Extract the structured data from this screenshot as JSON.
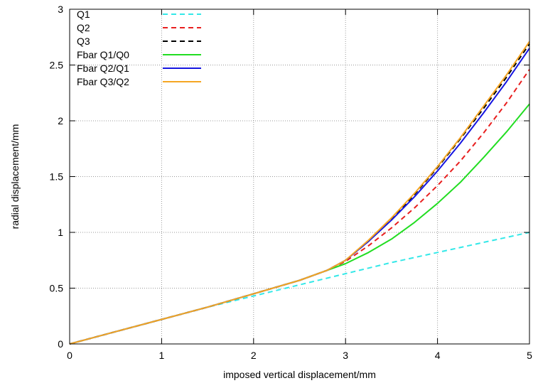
{
  "chart_data": {
    "type": "line",
    "xlabel": "imposed vertical displacement/mm",
    "ylabel": "radial displacement/mm",
    "xlim": [
      0,
      5
    ],
    "ylim": [
      0,
      3
    ],
    "xticks": [
      "0",
      "1",
      "2",
      "3",
      "4",
      "5"
    ],
    "yticks": [
      "0",
      "0.5",
      "1",
      "1.5",
      "2",
      "2.5",
      "3"
    ],
    "grid": true,
    "legend_position": "top-left",
    "series": [
      {
        "name": "Q1",
        "color": "#33e8e8",
        "dash": "dashed",
        "x": [
          0,
          0.5,
          1,
          1.5,
          2,
          2.5,
          3,
          3.5,
          4,
          4.5,
          5
        ],
        "y": [
          0,
          0.11,
          0.22,
          0.33,
          0.43,
          0.53,
          0.63,
          0.73,
          0.82,
          0.91,
          1.0
        ]
      },
      {
        "name": "Q2",
        "color": "#e81f1f",
        "dash": "dashed",
        "x": [
          0,
          0.5,
          1,
          1.5,
          2,
          2.5,
          2.8,
          3,
          3.25,
          3.5,
          3.75,
          4,
          4.25,
          4.5,
          4.75,
          5
        ],
        "y": [
          0,
          0.11,
          0.22,
          0.33,
          0.45,
          0.57,
          0.66,
          0.74,
          0.88,
          1.04,
          1.22,
          1.42,
          1.64,
          1.89,
          2.16,
          2.46
        ]
      },
      {
        "name": "Q3",
        "color": "#000000",
        "dash": "dashed",
        "x": [
          0,
          0.5,
          1,
          1.5,
          2,
          2.5,
          2.8,
          3,
          3.25,
          3.5,
          3.75,
          4,
          4.25,
          4.5,
          4.75,
          5
        ],
        "y": [
          0,
          0.11,
          0.22,
          0.33,
          0.45,
          0.57,
          0.66,
          0.75,
          0.92,
          1.12,
          1.34,
          1.58,
          1.84,
          2.11,
          2.39,
          2.69
        ]
      },
      {
        "name": "Fbar Q1/Q0",
        "color": "#22dd22",
        "dash": "solid",
        "x": [
          0,
          0.5,
          1,
          1.5,
          2,
          2.5,
          2.8,
          3,
          3.25,
          3.5,
          3.75,
          4,
          4.25,
          4.5,
          4.75,
          5
        ],
        "y": [
          0,
          0.11,
          0.22,
          0.33,
          0.45,
          0.57,
          0.66,
          0.72,
          0.82,
          0.94,
          1.09,
          1.26,
          1.45,
          1.67,
          1.9,
          2.15
        ]
      },
      {
        "name": "Fbar Q2/Q1",
        "color": "#1515e0",
        "dash": "solid",
        "x": [
          0,
          0.5,
          1,
          1.5,
          2,
          2.5,
          2.8,
          3,
          3.25,
          3.5,
          3.75,
          4,
          4.25,
          4.5,
          4.75,
          5
        ],
        "y": [
          0,
          0.11,
          0.22,
          0.33,
          0.45,
          0.57,
          0.66,
          0.75,
          0.92,
          1.11,
          1.32,
          1.55,
          1.8,
          2.07,
          2.35,
          2.65
        ]
      },
      {
        "name": "Fbar Q3/Q2",
        "color": "#f5a623",
        "dash": "solid",
        "x": [
          0,
          0.5,
          1,
          1.5,
          2,
          2.5,
          2.8,
          3,
          3.25,
          3.5,
          3.75,
          4,
          4.25,
          4.5,
          4.75,
          5
        ],
        "y": [
          0,
          0.11,
          0.22,
          0.33,
          0.45,
          0.57,
          0.66,
          0.75,
          0.93,
          1.13,
          1.35,
          1.59,
          1.85,
          2.13,
          2.41,
          2.71
        ]
      }
    ]
  }
}
